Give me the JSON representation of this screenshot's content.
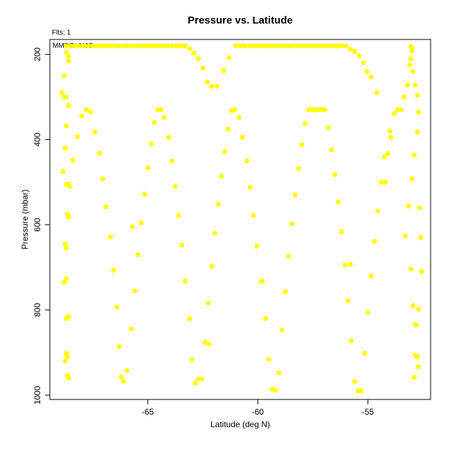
{
  "chart_data": {
    "type": "scatter",
    "title": "Pressure vs. Latitude",
    "xlabel": "Latitude (deg N)",
    "ylabel": "Pressure (mbar)",
    "annotations": {
      "fits": "Flts: 1",
      "date": "MMDD: 0115"
    },
    "xlim": [
      -69.45,
      -52.15
    ],
    "ylim": [
      1010,
      165
    ],
    "y_reversed": true,
    "x_ticks": [
      -65,
      -60,
      -55
    ],
    "x_tick_labels": [
      "-65",
      "-60",
      "-55"
    ],
    "y_ticks": [
      200,
      400,
      600,
      800,
      1000
    ],
    "y_tick_labels": [
      "200",
      "400",
      "600",
      "800",
      "1000"
    ],
    "grid": false,
    "point_color": "#ffff00",
    "series": [
      {
        "values": [
          [
            -68.9,
            290
          ],
          [
            -68.8,
            300
          ],
          [
            -68.7,
            300
          ],
          [
            -68.6,
            320
          ],
          [
            -68.7,
            368
          ],
          [
            -68.75,
            420
          ],
          [
            -68.85,
            475
          ],
          [
            -68.7,
            505
          ],
          [
            -68.55,
            510
          ],
          [
            -68.6,
            505
          ],
          [
            -68.8,
            250
          ],
          [
            -68.7,
            195
          ],
          [
            -68.6,
            215
          ],
          [
            -68.6,
            205
          ],
          [
            -68.4,
            448
          ],
          [
            -68.2,
            393
          ],
          [
            -68.0,
            345
          ],
          [
            -67.8,
            330
          ],
          [
            -67.6,
            335
          ],
          [
            -67.4,
            382
          ],
          [
            -67.2,
            432
          ],
          [
            -67.05,
            492
          ],
          [
            -66.9,
            558
          ],
          [
            -66.7,
            628
          ],
          [
            -66.55,
            707
          ],
          [
            -66.4,
            793
          ],
          [
            -66.3,
            886
          ],
          [
            -66.2,
            957
          ],
          [
            -66.1,
            967
          ],
          [
            -65.95,
            942
          ],
          [
            -65.75,
            844
          ],
          [
            -65.6,
            755
          ],
          [
            -65.45,
            670
          ],
          [
            -65.3,
            596
          ],
          [
            -65.15,
            528
          ],
          [
            -65.0,
            466
          ],
          [
            -64.85,
            410
          ],
          [
            -64.7,
            360
          ],
          [
            -64.55,
            330
          ],
          [
            -64.4,
            330
          ],
          [
            -64.25,
            348
          ],
          [
            -64.05,
            395
          ],
          [
            -63.9,
            450
          ],
          [
            -63.75,
            510
          ],
          [
            -63.6,
            578
          ],
          [
            -63.45,
            648
          ],
          [
            -63.3,
            732
          ],
          [
            -63.1,
            820
          ],
          [
            -63.0,
            916
          ],
          [
            -62.85,
            972
          ],
          [
            -62.7,
            962
          ],
          [
            -62.55,
            962
          ],
          [
            -62.4,
            876
          ],
          [
            -62.25,
            784
          ],
          [
            -62.1,
            697
          ],
          [
            -61.95,
            620
          ],
          [
            -61.8,
            552
          ],
          [
            -61.65,
            486
          ],
          [
            -61.5,
            428
          ],
          [
            -61.35,
            375
          ],
          [
            -61.2,
            332
          ],
          [
            -61.05,
            330
          ],
          [
            -60.85,
            348
          ],
          [
            -60.7,
            395
          ],
          [
            -60.5,
            450
          ],
          [
            -60.35,
            512
          ],
          [
            -60.2,
            578
          ],
          [
            -60.05,
            650
          ],
          [
            -59.85,
            733
          ],
          [
            -59.65,
            820
          ],
          [
            -59.5,
            916
          ],
          [
            -59.35,
            986
          ],
          [
            -59.2,
            988
          ],
          [
            -59.05,
            947
          ],
          [
            -58.9,
            847
          ],
          [
            -58.75,
            757
          ],
          [
            -58.6,
            674
          ],
          [
            -58.45,
            598
          ],
          [
            -58.3,
            530
          ],
          [
            -58.15,
            468
          ],
          [
            -58.0,
            412
          ],
          [
            -57.85,
            362
          ],
          [
            -57.7,
            330
          ],
          [
            -57.55,
            330
          ],
          [
            -57.4,
            330
          ],
          [
            -57.25,
            330
          ],
          [
            -57.1,
            330
          ],
          [
            -56.95,
            330
          ],
          [
            -56.8,
            372
          ],
          [
            -56.65,
            424
          ],
          [
            -56.5,
            482
          ],
          [
            -56.35,
            546
          ],
          [
            -56.2,
            616
          ],
          [
            -56.05,
            694
          ],
          [
            -55.9,
            778
          ],
          [
            -55.75,
            872
          ],
          [
            -55.6,
            968
          ],
          [
            -55.45,
            990
          ],
          [
            -55.3,
            990
          ],
          [
            -55.15,
            902
          ],
          [
            -55.0,
            806
          ],
          [
            -54.85,
            720
          ],
          [
            -54.7,
            639
          ],
          [
            -54.55,
            568
          ],
          [
            -54.4,
            500
          ],
          [
            -54.25,
            441
          ],
          [
            -54.1,
            433
          ],
          [
            -53.95,
            395
          ],
          [
            -53.8,
            339
          ],
          [
            -53.65,
            330
          ],
          [
            -53.5,
            330
          ],
          [
            -53.35,
            300
          ],
          [
            -53.2,
            272
          ],
          [
            -53.1,
            225
          ],
          [
            -53.0,
            185
          ],
          [
            -53.05,
            182
          ],
          [
            -53.0,
            192
          ],
          [
            -53.05,
            210
          ],
          [
            -52.95,
            240
          ],
          [
            -52.85,
            272
          ],
          [
            -52.75,
            296
          ],
          [
            -52.7,
            336
          ],
          [
            -52.75,
            382
          ],
          [
            -52.9,
            436
          ],
          [
            -53.0,
            492
          ],
          [
            -53.15,
            556
          ],
          [
            -53.3,
            626
          ],
          [
            -53.05,
            704
          ],
          [
            -52.95,
            790
          ],
          [
            -52.85,
            834
          ],
          [
            -52.8,
            835
          ],
          [
            -52.85,
            906
          ],
          [
            -52.75,
            910
          ],
          [
            -52.7,
            933
          ],
          [
            -52.9,
            958
          ],
          [
            -52.65,
            560
          ],
          [
            -52.6,
            630
          ],
          [
            -52.55,
            710
          ],
          [
            -52.7,
            798
          ],
          [
            -54.0,
            380
          ],
          [
            -68.75,
            645
          ],
          [
            -68.7,
            655
          ],
          [
            -68.65,
            575
          ],
          [
            -68.6,
            582
          ],
          [
            -68.8,
            735
          ],
          [
            -68.7,
            726
          ],
          [
            -68.7,
            820
          ],
          [
            -68.6,
            815
          ],
          [
            -68.75,
            920
          ],
          [
            -68.7,
            902
          ],
          [
            -68.65,
            910
          ],
          [
            -68.65,
            954
          ],
          [
            -68.6,
            960
          ],
          [
            -65.7,
            605
          ],
          [
            -62.2,
            880
          ],
          [
            -59.8,
            733
          ],
          [
            -55.8,
            693
          ],
          [
            -54.2,
            500
          ],
          [
            -68.7,
            180
          ],
          [
            -68.5,
            180
          ],
          [
            -68.3,
            180
          ],
          [
            -68.1,
            180
          ],
          [
            -67.9,
            180
          ],
          [
            -67.7,
            180
          ],
          [
            -67.5,
            180
          ],
          [
            -67.3,
            180
          ],
          [
            -67.1,
            180
          ],
          [
            -66.9,
            180
          ],
          [
            -66.7,
            180
          ],
          [
            -66.5,
            180
          ],
          [
            -66.3,
            180
          ],
          [
            -66.1,
            180
          ],
          [
            -65.9,
            180
          ],
          [
            -65.7,
            180
          ],
          [
            -65.5,
            180
          ],
          [
            -65.3,
            180
          ],
          [
            -65.1,
            180
          ],
          [
            -64.9,
            180
          ],
          [
            -64.7,
            180
          ],
          [
            -64.5,
            180
          ],
          [
            -64.3,
            180
          ],
          [
            -64.1,
            180
          ],
          [
            -63.9,
            180
          ],
          [
            -63.7,
            180
          ],
          [
            -63.5,
            180
          ],
          [
            -63.3,
            180
          ],
          [
            -63.1,
            187
          ],
          [
            -62.9,
            197
          ],
          [
            -62.7,
            210
          ],
          [
            -62.5,
            232
          ],
          [
            -62.3,
            265
          ],
          [
            -62.1,
            275
          ],
          [
            -61.85,
            275
          ],
          [
            -61.55,
            238
          ],
          [
            -61.3,
            208
          ],
          [
            -61.0,
            180
          ],
          [
            -60.8,
            180
          ],
          [
            -60.6,
            180
          ],
          [
            -60.4,
            180
          ],
          [
            -60.2,
            180
          ],
          [
            -60.0,
            180
          ],
          [
            -59.8,
            180
          ],
          [
            -59.6,
            180
          ],
          [
            -59.4,
            180
          ],
          [
            -59.2,
            180
          ],
          [
            -59.0,
            180
          ],
          [
            -58.8,
            180
          ],
          [
            -58.6,
            180
          ],
          [
            -58.4,
            180
          ],
          [
            -58.2,
            180
          ],
          [
            -58.0,
            180
          ],
          [
            -57.8,
            180
          ],
          [
            -57.6,
            180
          ],
          [
            -57.4,
            180
          ],
          [
            -57.2,
            180
          ],
          [
            -57.0,
            180
          ],
          [
            -56.8,
            180
          ],
          [
            -56.6,
            180
          ],
          [
            -56.4,
            180
          ],
          [
            -56.2,
            180
          ],
          [
            -56.0,
            180
          ],
          [
            -55.8,
            188
          ],
          [
            -55.6,
            193
          ],
          [
            -55.4,
            203
          ],
          [
            -55.2,
            220
          ],
          [
            -55.05,
            240
          ],
          [
            -54.85,
            253
          ],
          [
            -54.6,
            290
          ]
        ]
      }
    ]
  }
}
